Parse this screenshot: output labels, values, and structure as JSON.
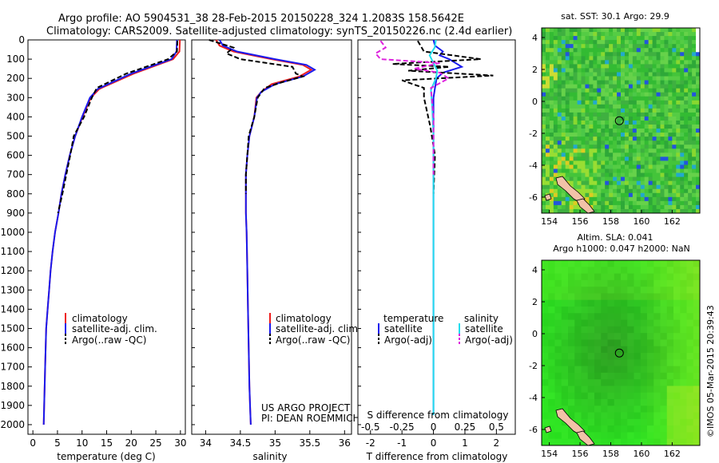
{
  "header": {
    "line1": "Argo profile: AO 5904531_38 28-Feb-2015 20150228_324 1.2083S 158.5642E",
    "line2": "Climatology: CARS2009. Satellite-adjusted climatology: synTS_20150226.nc (2.4d earlier)"
  },
  "colors": {
    "climatology": "#ee1c1c",
    "satellite": "#1a1aee",
    "argo": "#000000",
    "sal_satellite": "#22ddee",
    "sal_argo": "#dd22dd"
  },
  "depth_ticks": [
    "0",
    "100",
    "200",
    "300",
    "400",
    "500",
    "600",
    "700",
    "800",
    "900",
    "1000",
    "1100",
    "1200",
    "1300",
    "1400",
    "1500",
    "1600",
    "1700",
    "1800",
    "1900",
    "2000"
  ],
  "legend_main": {
    "climatology": "climatology",
    "satellite": "satellite-adj. clim.",
    "argo": "Argo(..raw -QC)"
  },
  "legend_diff": {
    "temp_heading": "temperature",
    "sal_heading": "salinity",
    "t_satellite": "satellite",
    "t_argo": "Argo(-adj)",
    "s_satellite": "satellite",
    "s_argo": "Argo(-adj)"
  },
  "credits": {
    "line1": "US ARGO PROJECT",
    "line2": "PI: DEAN ROEMMICH"
  },
  "maps": {
    "sst_title": "sat. SST: 30.1  Argo: 29.9",
    "sla_title1": "Altim. SLA: 0.041",
    "sla_title2": "Argo h1000: 0.047 h2000: NaN",
    "lat_ticks": [
      "4",
      "2",
      "0",
      "-2",
      "-4",
      "-6"
    ],
    "lon_ticks": [
      "154",
      "156",
      "158",
      "160",
      "162"
    ],
    "float_lon": 158.56,
    "float_lat": -1.21,
    "watermark": "©IMOS 05-Mar-2015 20:39:43"
  },
  "chart_data": [
    {
      "type": "line",
      "title": "",
      "xlabel": "temperature (deg C)",
      "ylabel": "",
      "xlim": [
        -1,
        31
      ],
      "ylim": [
        0,
        2050
      ],
      "x_ticks": [
        "0",
        "5",
        "10",
        "15",
        "20",
        "25",
        "30"
      ],
      "series": [
        {
          "name": "climatology",
          "x": [
            29.9,
            29.8,
            28.5,
            20.5,
            13.5,
            11.8,
            10.1,
            8.6,
            7.5,
            6.6,
            5.8,
            5.2,
            4.5,
            4.0,
            3.6,
            3.3,
            3.0,
            2.7,
            2.5,
            2.3,
            2.2
          ],
          "y": [
            0,
            60,
            100,
            175,
            255,
            300,
            400,
            500,
            600,
            700,
            800,
            900,
            1000,
            1100,
            1200,
            1300,
            1400,
            1500,
            1700,
            1900,
            2000
          ]
        },
        {
          "name": "satellite-adj. clim.",
          "x": [
            29.3,
            29.2,
            28.2,
            20.0,
            13.2,
            11.6,
            10.0,
            8.6,
            7.5,
            6.6,
            5.8,
            5.2,
            4.5,
            4.0,
            3.6,
            3.3,
            3.0,
            2.7,
            2.5,
            2.3,
            2.2
          ],
          "y": [
            0,
            60,
            100,
            175,
            255,
            300,
            400,
            500,
            600,
            700,
            800,
            900,
            1000,
            1100,
            1200,
            1300,
            1400,
            1500,
            1700,
            1900,
            2000
          ]
        },
        {
          "name": "Argo(..raw -QC)",
          "x": [
            29.4,
            29.3,
            27.5,
            19.0,
            13.0,
            12.0,
            10.4,
            8.3,
            7.6,
            6.8,
            6.0,
            5.1
          ],
          "y": [
            5,
            60,
            100,
            175,
            250,
            300,
            400,
            500,
            600,
            700,
            800,
            900
          ]
        }
      ]
    },
    {
      "type": "line",
      "title": "",
      "xlabel": "salinity",
      "ylabel": "",
      "xlim": [
        33.8,
        36.1
      ],
      "ylim": [
        0,
        2050
      ],
      "x_ticks": [
        "34",
        "34.5",
        "35",
        "35.5",
        "36"
      ],
      "series": [
        {
          "name": "climatology",
          "x": [
            34.15,
            34.2,
            34.4,
            34.95,
            35.4,
            35.52,
            35.35,
            34.95,
            34.8,
            34.73,
            34.7,
            34.63,
            34.6,
            34.58,
            34.58,
            34.58,
            34.59,
            34.6,
            34.61,
            34.62,
            34.63,
            34.64,
            34.65
          ],
          "y": [
            0,
            30,
            60,
            100,
            130,
            155,
            190,
            230,
            270,
            300,
            400,
            500,
            600,
            700,
            800,
            900,
            1000,
            1200,
            1400,
            1600,
            1800,
            1900,
            2000
          ]
        },
        {
          "name": "satellite-adj. clim.",
          "x": [
            34.2,
            34.25,
            34.45,
            35.0,
            35.45,
            35.57,
            35.4,
            35.0,
            34.8,
            34.74,
            34.7,
            34.63,
            34.6,
            34.58,
            34.58,
            34.58,
            34.59,
            34.6,
            34.61,
            34.62,
            34.63,
            34.64,
            34.65
          ],
          "y": [
            0,
            30,
            60,
            100,
            130,
            155,
            190,
            230,
            270,
            300,
            400,
            500,
            600,
            700,
            800,
            900,
            1000,
            1200,
            1400,
            1600,
            1800,
            1900,
            2000
          ]
        },
        {
          "name": "Argo(..raw -QC)",
          "x": [
            34.05,
            34.4,
            34.3,
            34.5,
            35.25,
            35.3,
            35.4,
            35.1,
            34.85,
            34.75,
            34.7,
            34.62,
            34.6,
            34.58,
            34.58
          ],
          "y": [
            0,
            40,
            70,
            100,
            140,
            175,
            190,
            220,
            250,
            300,
            400,
            500,
            600,
            700,
            800
          ]
        }
      ]
    },
    {
      "type": "line",
      "title": "",
      "xlabel": "T difference from climatology",
      "x2label": "S difference from climatology",
      "ylabel": "",
      "xlim": [
        -2.4,
        2.6
      ],
      "ylim": [
        0,
        2050
      ],
      "x_ticks": [
        "-2",
        "-1",
        "0",
        "1",
        "2"
      ],
      "x2_ticks": [
        "-0.5",
        "-0.25",
        "0",
        "0.25",
        "0.5"
      ],
      "x2lim": [
        -0.6,
        0.65
      ],
      "series": [
        {
          "name": "temperature satellite",
          "axis": "T",
          "x": [
            0.0,
            0.05,
            0.3,
            0.2,
            0.5,
            0.9,
            0.3,
            0.1,
            0.05,
            0.0,
            0.0,
            0.0,
            0.0,
            0.0,
            0.0
          ],
          "y": [
            0,
            30,
            60,
            80,
            100,
            140,
            170,
            200,
            250,
            300,
            400,
            600,
            1000,
            1500,
            1950
          ]
        },
        {
          "name": "temperature Argo(-adj)",
          "axis": "T",
          "x": [
            -0.5,
            -0.3,
            1.5,
            -1.3,
            0.5,
            -0.8,
            1.9,
            -1.0,
            -0.3,
            -0.3,
            -0.1,
            0.05,
            0.0
          ],
          "y": [
            5,
            60,
            100,
            125,
            140,
            160,
            185,
            210,
            250,
            300,
            450,
            600,
            800
          ]
        },
        {
          "name": "salinity satellite",
          "axis": "S",
          "x": [
            0.02,
            0.01,
            -0.03,
            0.0,
            0.03,
            0.02,
            -0.02,
            -0.01,
            0.0,
            0.0,
            0.0,
            0.0
          ],
          "y": [
            0,
            40,
            80,
            120,
            160,
            200,
            260,
            350,
            500,
            800,
            1200,
            1950
          ]
        },
        {
          "name": "salinity Argo(-adj)",
          "axis": "S",
          "x": [
            -0.42,
            -0.38,
            -0.46,
            -0.42,
            0.05,
            -0.15,
            0.05,
            0.12,
            -0.02,
            0.0,
            0.0
          ],
          "y": [
            5,
            40,
            70,
            100,
            120,
            150,
            170,
            200,
            250,
            400,
            700
          ]
        }
      ]
    },
    {
      "type": "heatmap",
      "title": "sat. SST: 30.1  Argo: 29.9",
      "xlabel": "",
      "ylabel": "",
      "xlim": [
        153.5,
        163.8
      ],
      "ylim": [
        -7.0,
        4.6
      ]
    },
    {
      "type": "heatmap",
      "title": "Altim. SLA: 0.041",
      "xlabel": "",
      "ylabel": "",
      "xlim": [
        153.5,
        163.8
      ],
      "ylim": [
        -7.0,
        4.6
      ]
    }
  ]
}
